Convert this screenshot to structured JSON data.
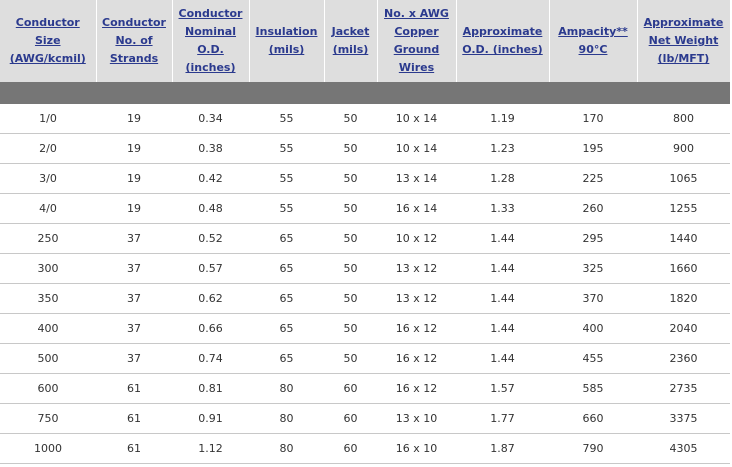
{
  "table": {
    "headers": [
      "Conductor Size (AWG/kcmil)",
      "Conductor No. of Strands",
      "Conductor Nominal O.D. (inches)",
      "Insulation (mils)",
      "Jacket (mils)",
      "No. x AWG Copper Ground Wires",
      "Approximate O.D. (inches)",
      "Ampacity** 90°C",
      "Approximate Net Weight (lb/MFT)"
    ],
    "rows": [
      [
        "1/0",
        "19",
        "0.34",
        "55",
        "50",
        "10 x 14",
        "1.19",
        "170",
        "800"
      ],
      [
        "2/0",
        "19",
        "0.38",
        "55",
        "50",
        "10 x 14",
        "1.23",
        "195",
        "900"
      ],
      [
        "3/0",
        "19",
        "0.42",
        "55",
        "50",
        "13 x 14",
        "1.28",
        "225",
        "1065"
      ],
      [
        "4/0",
        "19",
        "0.48",
        "55",
        "50",
        "16 x 14",
        "1.33",
        "260",
        "1255"
      ],
      [
        "250",
        "37",
        "0.52",
        "65",
        "50",
        "10 x 12",
        "1.44",
        "295",
        "1440"
      ],
      [
        "300",
        "37",
        "0.57",
        "65",
        "50",
        "13 x 12",
        "1.44",
        "325",
        "1660"
      ],
      [
        "350",
        "37",
        "0.62",
        "65",
        "50",
        "13 x 12",
        "1.44",
        "370",
        "1820"
      ],
      [
        "400",
        "37",
        "0.66",
        "65",
        "50",
        "16 x 12",
        "1.44",
        "400",
        "2040"
      ],
      [
        "500",
        "37",
        "0.74",
        "65",
        "50",
        "16 x 12",
        "1.44",
        "455",
        "2360"
      ],
      [
        "600",
        "61",
        "0.81",
        "80",
        "60",
        "16 x 12",
        "1.57",
        "585",
        "2735"
      ],
      [
        "750",
        "61",
        "0.91",
        "80",
        "60",
        "13 x 10",
        "1.77",
        "660",
        "3375"
      ],
      [
        "1000",
        "61",
        "1.12",
        "80",
        "60",
        "16 x 10",
        "1.87",
        "790",
        "4305"
      ]
    ]
  }
}
